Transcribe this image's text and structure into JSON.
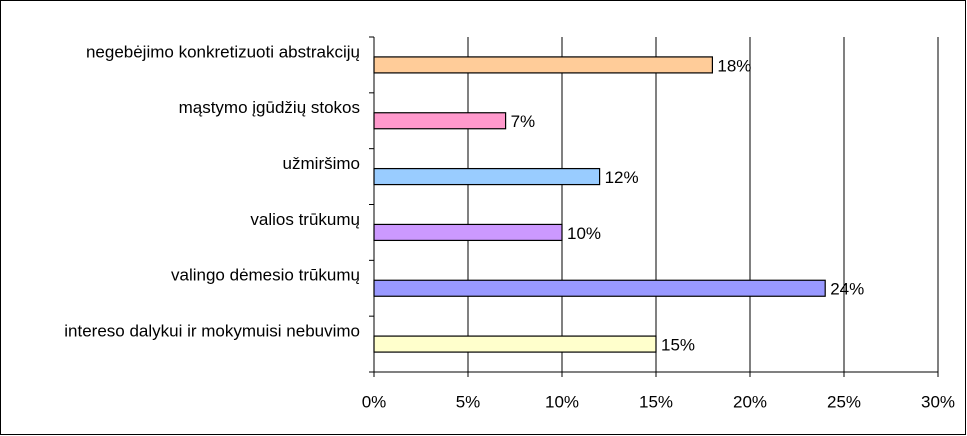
{
  "chart_data": {
    "type": "bar",
    "orientation": "horizontal",
    "categories": [
      "negebėjimo konkretizuoti abstrakcijų",
      "mąstymo įgūdžių stokos",
      "užmiršimo",
      "valios trūkumų",
      "valingo dėmesio trūkumų",
      "intereso dalykui ir mokymuisi nebuvimo"
    ],
    "values": [
      18,
      7,
      12,
      10,
      24,
      15
    ],
    "value_labels": [
      "18%",
      "7%",
      "12%",
      "10%",
      "24%",
      "15%"
    ],
    "colors": [
      "#ffcc99",
      "#ff99cc",
      "#99ccff",
      "#cc99ff",
      "#9999ff",
      "#ffffcc"
    ],
    "xlim": [
      0,
      30
    ],
    "xticks": [
      {
        "value": 0,
        "label": "0%"
      },
      {
        "value": 5,
        "label": "5%"
      },
      {
        "value": 10,
        "label": "10%"
      },
      {
        "value": 15,
        "label": "15%"
      },
      {
        "value": 20,
        "label": "20%"
      },
      {
        "value": 25,
        "label": "25%"
      },
      {
        "value": 30,
        "label": "30%"
      }
    ],
    "grid": true
  }
}
